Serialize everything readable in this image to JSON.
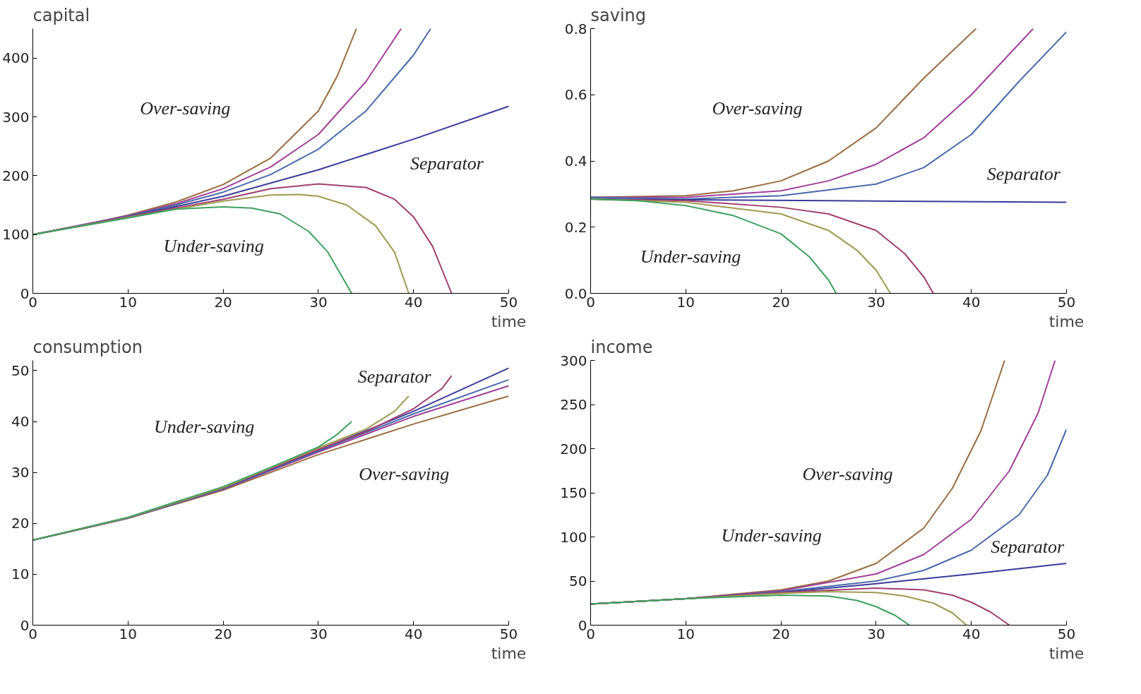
{
  "chart_data": [
    {
      "type": "line",
      "title": "capital",
      "xlabel": "time",
      "xlim": [
        0,
        50
      ],
      "ylim": [
        0,
        450
      ],
      "xticks": [
        0,
        10,
        20,
        30,
        40,
        50
      ],
      "yticks": [
        0,
        100,
        200,
        300,
        400
      ],
      "grid": false,
      "marker": "none",
      "line_style": "solid",
      "annotations": [
        "Over-saving",
        "Separator",
        "Under-saving"
      ],
      "series": [
        {
          "color": "#9a6b3f",
          "x": [
            0,
            5,
            10,
            15,
            20,
            25,
            30,
            32,
            34
          ],
          "values": [
            100,
            115,
            133,
            155,
            185,
            230,
            310,
            370,
            450
          ]
        },
        {
          "color": "#a0409a",
          "x": [
            0,
            10,
            15,
            20,
            25,
            30,
            35,
            38.7
          ],
          "values": [
            100,
            132,
            152,
            178,
            215,
            270,
            360,
            450
          ]
        },
        {
          "color": "#4a6aaa",
          "x": [
            0,
            10,
            15,
            20,
            25,
            30,
            35,
            40,
            41.8
          ],
          "values": [
            100,
            131,
            150,
            172,
            202,
            245,
            310,
            405,
            450
          ]
        },
        {
          "color": "#3a3a9a",
          "x": [
            0,
            10,
            20,
            30,
            40,
            50
          ],
          "values": [
            100,
            130,
            165,
            210,
            262,
            318
          ]
        },
        {
          "color": "#a04070",
          "x": [
            0,
            10,
            20,
            25,
            30,
            35,
            38,
            40,
            42,
            44
          ],
          "values": [
            100,
            130,
            160,
            178,
            186,
            180,
            160,
            130,
            80,
            0
          ]
        },
        {
          "color": "#a09a50",
          "x": [
            0,
            10,
            20,
            25,
            28,
            30,
            33,
            36,
            38,
            39.5
          ],
          "values": [
            100,
            129,
            157,
            167,
            168,
            165,
            150,
            115,
            70,
            0
          ]
        },
        {
          "color": "#40a060",
          "x": [
            0,
            10,
            15,
            20,
            23,
            26,
            29,
            31,
            33.5
          ],
          "values": [
            100,
            128,
            143,
            147,
            145,
            135,
            105,
            70,
            0
          ]
        }
      ]
    },
    {
      "type": "line",
      "title": "saving",
      "xlabel": "time",
      "xlim": [
        0,
        50
      ],
      "ylim": [
        0,
        0.8
      ],
      "xticks": [
        0,
        10,
        20,
        30,
        40,
        50
      ],
      "yticks": [
        {
          "value": 0,
          "label": "0.0"
        },
        0.2,
        0.4,
        0.6,
        0.8
      ],
      "grid": false,
      "marker": "none",
      "line_style": "solid",
      "annotations": [
        "Over-saving",
        "Separator",
        "Under-saving"
      ],
      "series": [
        {
          "color": "#9a6b3f",
          "x": [
            0,
            10,
            15,
            20,
            25,
            30,
            35,
            40.5
          ],
          "values": [
            0.29,
            0.295,
            0.31,
            0.34,
            0.4,
            0.5,
            0.65,
            0.8
          ]
        },
        {
          "color": "#a0409a",
          "x": [
            0,
            10,
            20,
            25,
            30,
            35,
            40,
            46.5
          ],
          "values": [
            0.29,
            0.29,
            0.31,
            0.34,
            0.39,
            0.47,
            0.6,
            0.8
          ]
        },
        {
          "color": "#4a6aaa",
          "x": [
            0,
            10,
            20,
            30,
            35,
            40,
            45,
            50
          ],
          "values": [
            0.29,
            0.285,
            0.295,
            0.33,
            0.38,
            0.48,
            0.64,
            0.79
          ]
        },
        {
          "color": "#3a3a9a",
          "x": [
            0,
            25,
            50
          ],
          "values": [
            0.285,
            0.28,
            0.275
          ]
        },
        {
          "color": "#a04070",
          "x": [
            0,
            10,
            20,
            25,
            30,
            33,
            35,
            36
          ],
          "values": [
            0.285,
            0.28,
            0.26,
            0.24,
            0.19,
            0.12,
            0.05,
            0
          ]
        },
        {
          "color": "#a09a50",
          "x": [
            0,
            10,
            20,
            25,
            28,
            30,
            31.5
          ],
          "values": [
            0.285,
            0.275,
            0.24,
            0.19,
            0.13,
            0.07,
            0
          ]
        },
        {
          "color": "#40a060",
          "x": [
            0,
            5,
            10,
            15,
            20,
            23,
            25,
            25.8
          ],
          "values": [
            0.285,
            0.28,
            0.265,
            0.235,
            0.18,
            0.11,
            0.04,
            0
          ]
        }
      ]
    },
    {
      "type": "line",
      "title": "consumption",
      "xlabel": "time",
      "xlim": [
        0,
        50
      ],
      "ylim": [
        0,
        52
      ],
      "xticks": [
        0,
        10,
        20,
        30,
        40,
        50
      ],
      "yticks": [
        0,
        10,
        20,
        30,
        40,
        50
      ],
      "grid": false,
      "marker": "none",
      "line_style": "solid",
      "annotations": [
        "Separator",
        "Under-saving",
        "Over-saving"
      ],
      "series": [
        {
          "color": "#9a6b3f",
          "x": [
            0,
            10,
            20,
            30,
            40,
            50
          ],
          "values": [
            16.7,
            21,
            26.5,
            33.5,
            39.5,
            45
          ]
        },
        {
          "color": "#a0409a",
          "x": [
            0,
            10,
            20,
            30,
            40,
            50
          ],
          "values": [
            16.7,
            21,
            26.7,
            34,
            41,
            47
          ]
        },
        {
          "color": "#4a6aaa",
          "x": [
            0,
            10,
            20,
            30,
            40,
            50
          ],
          "values": [
            16.7,
            21,
            26.8,
            34.2,
            41.5,
            48.2
          ]
        },
        {
          "color": "#3a3a9a",
          "x": [
            0,
            10,
            20,
            30,
            40,
            50
          ],
          "values": [
            16.7,
            21.1,
            26.9,
            34.4,
            42,
            50.5
          ]
        },
        {
          "color": "#a04070",
          "x": [
            0,
            10,
            20,
            30,
            35,
            40,
            43,
            44
          ],
          "values": [
            16.7,
            21.1,
            27,
            34.5,
            38,
            42.5,
            46.5,
            49
          ]
        },
        {
          "color": "#a09a50",
          "x": [
            0,
            10,
            20,
            30,
            35,
            38,
            39.5
          ],
          "values": [
            16.7,
            21.1,
            27,
            34.8,
            38.5,
            42,
            45
          ]
        },
        {
          "color": "#40a060",
          "x": [
            0,
            10,
            20,
            25,
            30,
            32,
            33.5
          ],
          "values": [
            16.7,
            21.2,
            27.2,
            31,
            35,
            37.5,
            40
          ]
        }
      ]
    },
    {
      "type": "line",
      "title": "income",
      "xlabel": "time",
      "xlim": [
        0,
        50
      ],
      "ylim": [
        0,
        300
      ],
      "xticks": [
        0,
        10,
        20,
        30,
        40,
        50
      ],
      "yticks": [
        0,
        50,
        100,
        150,
        200,
        250,
        300
      ],
      "grid": false,
      "marker": "none",
      "line_style": "solid",
      "annotations": [
        "Over-saving",
        "Under-saving",
        "Separator"
      ],
      "series": [
        {
          "color": "#9a6b3f",
          "x": [
            0,
            10,
            20,
            25,
            30,
            35,
            38,
            41,
            43.5
          ],
          "values": [
            24,
            30,
            40,
            50,
            70,
            110,
            155,
            220,
            300
          ]
        },
        {
          "color": "#a0409a",
          "x": [
            0,
            10,
            20,
            30,
            35,
            40,
            44,
            47,
            48.8
          ],
          "values": [
            24,
            30,
            39,
            58,
            80,
            120,
            175,
            240,
            300
          ]
        },
        {
          "color": "#4a6aaa",
          "x": [
            0,
            10,
            20,
            30,
            35,
            40,
            45,
            48,
            50
          ],
          "values": [
            24,
            30,
            38,
            50,
            62,
            85,
            125,
            170,
            222
          ]
        },
        {
          "color": "#3a3a9a",
          "x": [
            0,
            10,
            20,
            30,
            40,
            50
          ],
          "values": [
            24,
            30,
            37,
            47,
            58,
            70
          ]
        },
        {
          "color": "#a04070",
          "x": [
            0,
            10,
            20,
            30,
            35,
            38,
            40,
            42,
            44
          ],
          "values": [
            24,
            30,
            37,
            42,
            40,
            34,
            26,
            15,
            0
          ]
        },
        {
          "color": "#a09a50",
          "x": [
            0,
            10,
            20,
            25,
            30,
            33,
            36,
            38,
            39.5
          ],
          "values": [
            24,
            30,
            36,
            38,
            37,
            33,
            25,
            14,
            0
          ]
        },
        {
          "color": "#40a060",
          "x": [
            0,
            10,
            20,
            25,
            28,
            30,
            32,
            33.5
          ],
          "values": [
            24,
            30,
            34,
            33,
            28,
            21,
            11,
            0
          ]
        }
      ]
    }
  ]
}
